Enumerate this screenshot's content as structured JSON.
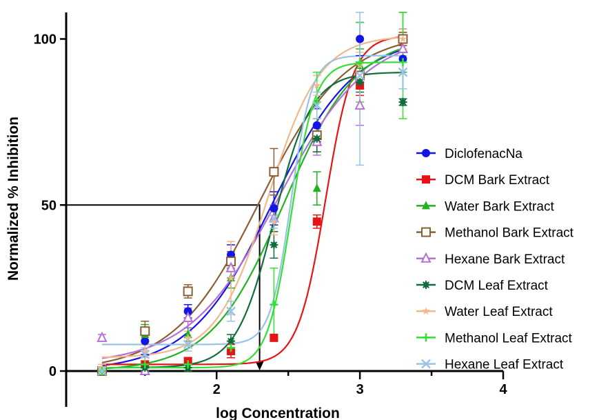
{
  "chart_data": {
    "type": "scatter",
    "xlabel": "log Concentration",
    "ylabel": "Normalized % Inhibition",
    "xlim": [
      0.95,
      4
    ],
    "ylim": [
      0,
      108
    ],
    "x_ticks": [
      2,
      3,
      4
    ],
    "y_ticks": [
      0,
      50,
      100
    ],
    "x_minor_ticks": [
      1.5,
      2.5,
      3.5
    ],
    "x_tick_labels": [
      "2",
      "3",
      "4"
    ],
    "y_tick_labels": [
      "0",
      "50",
      "100"
    ],
    "legend_position": "right",
    "reference_line": {
      "x": 2.3,
      "y": 50
    },
    "series": [
      {
        "name": "DiclofenacNa",
        "color": "#1414e6",
        "marker": "circle-filled",
        "x": [
          1.2,
          1.5,
          1.8,
          2.1,
          2.4,
          2.7,
          3.0,
          3.3
        ],
        "y": [
          0,
          9,
          18,
          35,
          49,
          74,
          100,
          94
        ],
        "err": [
          1,
          4,
          2,
          3,
          5,
          5,
          5,
          9
        ],
        "fit": {
          "bottom": 0,
          "top": 101,
          "logec50": 2.39,
          "hill": 1.5
        }
      },
      {
        "name": "DCM Bark Extract",
        "color": "#e61414",
        "marker": "square-filled",
        "x": [
          1.2,
          1.5,
          1.8,
          2.1,
          2.4,
          2.7,
          3.0,
          3.3
        ],
        "y": [
          0,
          2,
          3,
          6,
          10,
          45,
          86,
          100
        ],
        "err": [
          0,
          2,
          1,
          2,
          1,
          2,
          3,
          2
        ],
        "fit": {
          "bottom": 2,
          "top": 101,
          "logec50": 2.76,
          "hill": 4.5
        }
      },
      {
        "name": "Water Bark Extract",
        "color": "#1fb31f",
        "marker": "triangle-filled",
        "x": [
          1.2,
          1.5,
          1.8,
          2.1,
          2.4,
          2.7,
          3.0,
          3.3
        ],
        "y": [
          0,
          11,
          11,
          28,
          46,
          55,
          92,
          100
        ],
        "err": [
          1,
          3,
          2,
          3,
          4,
          5,
          5,
          10
        ],
        "fit": {
          "bottom": 0,
          "top": 101,
          "logec50": 2.47,
          "hill": 1.7
        }
      },
      {
        "name": "Methanol Bark Extract",
        "color": "#8b5e34",
        "marker": "square-open",
        "x": [
          1.2,
          1.5,
          1.8,
          2.1,
          2.4,
          2.7,
          3.0,
          3.3
        ],
        "y": [
          0,
          12,
          24,
          33,
          60,
          71,
          89,
          100
        ],
        "err": [
          1,
          3,
          2,
          3,
          7,
          5,
          4,
          2
        ],
        "fit": {
          "bottom": 0,
          "top": 102,
          "logec50": 2.3,
          "hill": 1.45
        }
      },
      {
        "name": "Hexane Bark Extract",
        "color": "#b56fd6",
        "marker": "triangle-open",
        "x": [
          1.2,
          1.5,
          1.8,
          2.1,
          2.4,
          2.7,
          3.0,
          3.3
        ],
        "y": [
          10,
          0,
          16,
          31,
          46,
          69,
          80,
          97
        ],
        "err": [
          1,
          4,
          3,
          3,
          4,
          4,
          6,
          3
        ],
        "fit": {
          "bottom": 2,
          "top": 102,
          "logec50": 2.43,
          "hill": 1.4
        }
      },
      {
        "name": "DCM Leaf Extract",
        "color": "#0f6e3a",
        "marker": "asterisk",
        "x": [
          1.2,
          1.5,
          1.8,
          2.1,
          2.4,
          2.7,
          3.0,
          3.3
        ],
        "y": [
          0,
          1,
          1,
          9,
          38,
          70,
          87,
          81
        ],
        "err": [
          0,
          1,
          1,
          2,
          4,
          4,
          3,
          1
        ],
        "fit": {
          "bottom": 1,
          "top": 90,
          "logec50": 2.4,
          "hill": 3.3
        }
      },
      {
        "name": "Water Leaf Extract",
        "color": "#f2b88c",
        "marker": "star",
        "x": [
          1.2,
          1.5,
          1.8,
          2.1,
          2.4,
          2.7,
          3.0,
          3.3
        ],
        "y": [
          1,
          6,
          10,
          28,
          45,
          86,
          92,
          100
        ],
        "err": [
          1,
          2,
          2,
          11,
          4,
          3,
          4,
          3
        ],
        "fit": {
          "bottom": 4,
          "top": 101,
          "logec50": 2.36,
          "hill": 2.4
        }
      },
      {
        "name": "Methanol Leaf Extract",
        "color": "#33e033",
        "marker": "plus",
        "x": [
          1.2,
          1.5,
          1.8,
          2.1,
          2.4,
          2.7,
          3.0,
          3.3
        ],
        "y": [
          0,
          2,
          2,
          7,
          20,
          81,
          93,
          93
        ],
        "err": [
          0,
          1,
          1,
          2,
          11,
          9,
          12,
          17
        ],
        "fit": {
          "bottom": 1,
          "top": 93,
          "logec50": 2.52,
          "hill": 5.2
        }
      },
      {
        "name": "Hexane Leaf Extract",
        "color": "#99c2e6",
        "marker": "x",
        "x": [
          1.2,
          1.5,
          1.8,
          2.1,
          2.4,
          2.7,
          3.0,
          3.3
        ],
        "y": [
          0,
          5,
          8,
          18,
          46,
          80,
          89,
          90
        ],
        "err": [
          1,
          2,
          2,
          3,
          3,
          4,
          27,
          5
        ],
        "fit": {
          "bottom": 8,
          "top": 95,
          "logec50": 2.52,
          "hill": 6
        }
      }
    ]
  }
}
